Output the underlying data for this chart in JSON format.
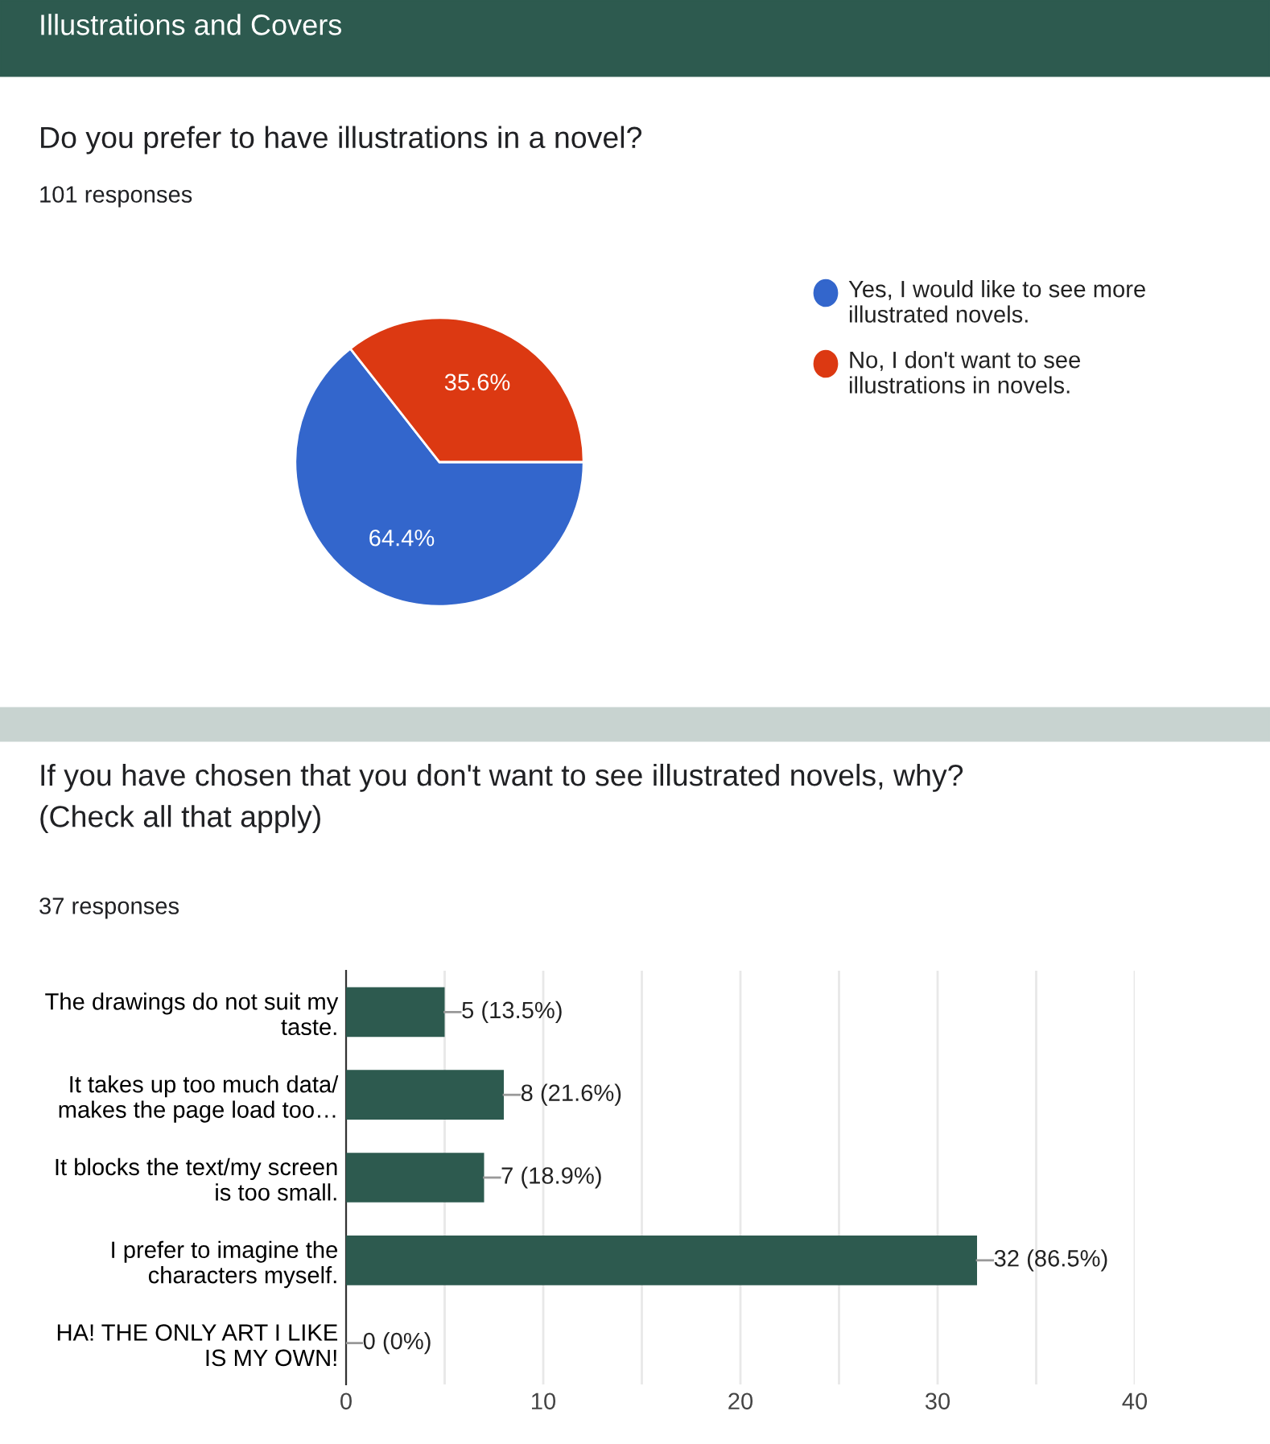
{
  "chart_data": [
    {
      "type": "pie",
      "title": "Do you prefer to have illustrations in a novel?",
      "subtitle": "101 responses",
      "annotations": [
        "Illustrations and Covers"
      ],
      "categories": [
        "Yes, I would like to see more\nillustrated novels.",
        "No, I don't want to see\nillustrations in novels."
      ],
      "values": [
        64.4,
        35.6
      ],
      "value_labels": [
        "64.4%",
        "35.6%"
      ],
      "colors": [
        "#3366cc",
        "#dc3912"
      ],
      "legend": "right"
    },
    {
      "type": "bar",
      "orientation": "horizontal",
      "title": "If you have chosen that you don't want to see illustrated novels, why?\n(Check all that apply)",
      "subtitle": "37 responses",
      "categories": [
        "The drawings do not suit my\ntaste.",
        "It takes up too much data/\nmakes the page load too…",
        "It blocks the text/my screen\nis too small.",
        "I prefer to imagine the\ncharacters myself.",
        "HA! THE ONLY ART I LIKE\nIS MY OWN!"
      ],
      "values": [
        5,
        8,
        7,
        32,
        0
      ],
      "value_labels": [
        "5 (13.5%)",
        "8 (21.6%)",
        "7 (18.9%)",
        "32 (86.5%)",
        "0 (0%)"
      ],
      "color": "#2d5a4f",
      "xlim": [
        0,
        40
      ],
      "xticks": [
        0,
        {
          "value": 5,
          "label": null
        },
        10,
        {
          "value": 15,
          "label": null
        },
        20,
        {
          "value": 25,
          "label": null
        },
        30,
        {
          "value": 35,
          "label": null
        },
        40
      ],
      "grid": "x",
      "legend": false
    }
  ]
}
